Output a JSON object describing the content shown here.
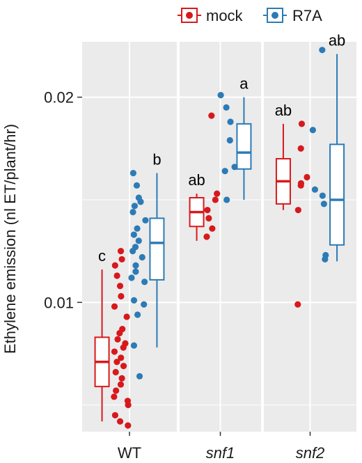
{
  "chart_data": {
    "type": "boxplot",
    "ylabel": "Ethylene emission (nl ET/plant/hr)",
    "ylim": [
      0.0037,
      0.0227
    ],
    "y_ticks": [
      {
        "value": 0.01,
        "label": "0.01"
      },
      {
        "value": 0.02,
        "label": "0.02"
      }
    ],
    "y_minor_gridlines": [
      0.005,
      0.015
    ],
    "grid": true,
    "legend": {
      "position": "top",
      "entries": [
        {
          "name": "mock",
          "color": "#D7191C"
        },
        {
          "name": "R7A",
          "color": "#2C7BB6"
        }
      ]
    },
    "panels": [
      {
        "label": "WT",
        "italic": false,
        "groups": [
          {
            "series": "mock",
            "box": {
              "min": 0.0042,
              "q1": 0.0059,
              "median": 0.0071,
              "q3": 0.0083,
              "max": 0.0116
            },
            "letter": "c",
            "points": [
              0.0125,
              0.0121,
              0.0118,
              0.0113,
              0.0108,
              0.0103,
              0.0098,
              0.0093,
              0.0087,
              0.0085,
              0.0082,
              0.008,
              0.0078,
              0.0076,
              0.0073,
              0.0071,
              0.0069,
              0.0066,
              0.0063,
              0.006,
              0.0057,
              0.0054,
              0.0052,
              0.005,
              0.0045,
              0.0042,
              0.004
            ]
          },
          {
            "series": "R7A",
            "box": {
              "min": 0.0078,
              "q1": 0.0111,
              "median": 0.0129,
              "q3": 0.0141,
              "max": 0.0163
            },
            "letter": "b",
            "points": [
              0.0163,
              0.0157,
              0.0151,
              0.0149,
              0.0147,
              0.0144,
              0.014,
              0.0136,
              0.0133,
              0.013,
              0.0127,
              0.0125,
              0.0122,
              0.0118,
              0.0115,
              0.0112,
              0.011,
              0.0101,
              0.0099,
              0.0094,
              0.0079,
              0.0064
            ]
          }
        ]
      },
      {
        "label": "snf1",
        "italic": true,
        "groups": [
          {
            "series": "mock",
            "box": {
              "min": 0.013,
              "q1": 0.0137,
              "median": 0.0144,
              "q3": 0.0151,
              "max": 0.0153
            },
            "letter": "ab",
            "points": [
              0.0191,
              0.0153,
              0.015,
              0.0145,
              0.0141,
              0.0136,
              0.0132
            ]
          },
          {
            "series": "R7A",
            "box": {
              "min": 0.015,
              "q1": 0.0165,
              "median": 0.0173,
              "q3": 0.0187,
              "max": 0.02
            },
            "letter": "a",
            "points": [
              0.0201,
              0.0195,
              0.0188,
              0.0179,
              0.0166,
              0.0164,
              0.015
            ]
          }
        ]
      },
      {
        "label": "snf2",
        "italic": true,
        "groups": [
          {
            "series": "mock",
            "box": {
              "min": 0.0145,
              "q1": 0.0148,
              "median": 0.0159,
              "q3": 0.017,
              "max": 0.0187
            },
            "letter": "ab",
            "points": [
              0.0187,
              0.0175,
              0.0161,
              0.0158,
              0.0157,
              0.0145,
              0.0099
            ]
          },
          {
            "series": "R7A",
            "box": {
              "min": 0.012,
              "q1": 0.0128,
              "median": 0.015,
              "q3": 0.0177,
              "max": 0.0221
            },
            "letter": "ab",
            "points": [
              0.0223,
              0.0184,
              0.0155,
              0.0152,
              0.0148,
              0.0123,
              0.0121
            ]
          }
        ]
      }
    ]
  }
}
